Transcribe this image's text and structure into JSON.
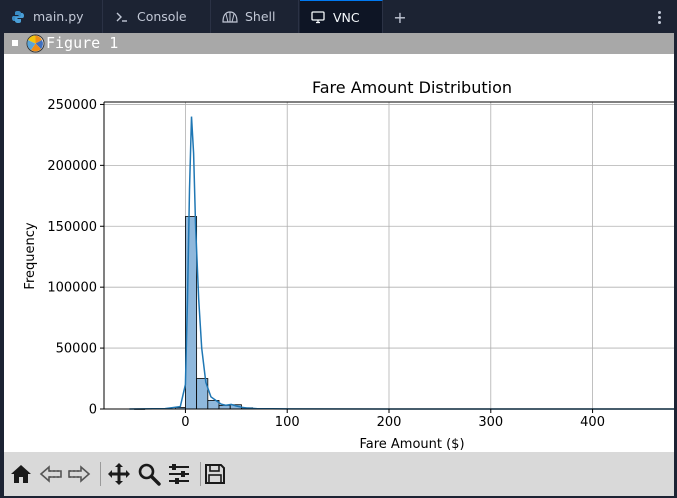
{
  "tabs": [
    {
      "label": "main.py",
      "icon": "python-icon",
      "active": false
    },
    {
      "label": "Console",
      "icon": "terminal-icon",
      "active": false
    },
    {
      "label": "Shell",
      "icon": "shell-icon",
      "active": false
    },
    {
      "label": "VNC",
      "icon": "monitor-icon",
      "active": true
    }
  ],
  "tabbar": {
    "add_icon": "plus-icon",
    "menu_icon": "kebab-menu-icon"
  },
  "window": {
    "title": "Figure 1"
  },
  "toolbar": {
    "buttons": [
      "home-icon",
      "back-arrow-icon",
      "forward-arrow-icon",
      "pan-icon",
      "zoom-icon",
      "configure-subplots-icon",
      "save-icon"
    ]
  },
  "colors": {
    "bar_fill": "#8fb8dc",
    "kde_line": "#1f77b4",
    "tab_accent": "#0079f2"
  },
  "chart_data": {
    "type": "bar",
    "title": "Fare Amount Distribution",
    "xlabel": "Fare Amount ($)",
    "ylabel": "Frequency",
    "xlim": [
      -80,
      480
    ],
    "ylim": [
      0,
      252000
    ],
    "xticks": [
      0,
      100,
      200,
      300,
      400
    ],
    "xtick_labels": [
      "0",
      "100",
      "200",
      "300",
      "400"
    ],
    "yticks": [
      0,
      50000,
      100000,
      150000,
      200000,
      250000
    ],
    "ytick_labels": [
      "0",
      "50000",
      "100000",
      "150000",
      "200000",
      "250000"
    ],
    "grid": true,
    "bins": [
      {
        "x0": -50,
        "x1": -40,
        "count": 100
      },
      {
        "x0": -10,
        "x1": 0,
        "count": 1200
      },
      {
        "x0": 0,
        "x1": 11,
        "count": 158000
      },
      {
        "x0": 11,
        "x1": 22,
        "count": 25000
      },
      {
        "x0": 22,
        "x1": 33,
        "count": 7000
      },
      {
        "x0": 33,
        "x1": 44,
        "count": 3000
      },
      {
        "x0": 44,
        "x1": 55,
        "count": 3500
      },
      {
        "x0": 55,
        "x1": 66,
        "count": 1000
      }
    ],
    "kde": {
      "x": [
        -55,
        -20,
        -5,
        0,
        2,
        4,
        6,
        8,
        10,
        13,
        16,
        20,
        25,
        30,
        35,
        40,
        45,
        50,
        55,
        60,
        70,
        100,
        200,
        300,
        480
      ],
      "y": [
        0,
        300,
        2000,
        20000,
        90000,
        180000,
        240000,
        210000,
        150000,
        90000,
        50000,
        22000,
        10000,
        7000,
        4000,
        3000,
        3800,
        2500,
        1500,
        800,
        300,
        100,
        0,
        0,
        0
      ]
    }
  }
}
